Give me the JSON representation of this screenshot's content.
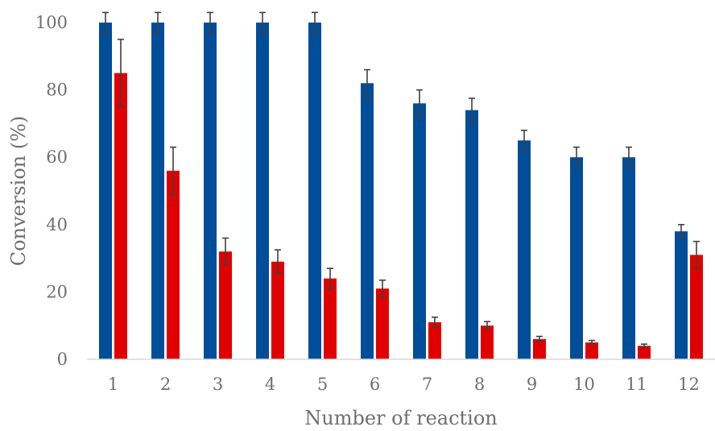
{
  "chart_data": {
    "type": "bar",
    "xlabel": "Number of reaction",
    "ylabel": "Conversion (%)",
    "categories": [
      "1",
      "2",
      "3",
      "4",
      "5",
      "6",
      "7",
      "8",
      "9",
      "10",
      "11",
      "12"
    ],
    "ylim": [
      0,
      100
    ],
    "yticks": [
      0,
      20,
      40,
      60,
      80,
      100
    ],
    "grid": false,
    "legend": "none",
    "series": [
      {
        "color": "#004d9a",
        "values": [
          100,
          100,
          100,
          100,
          100,
          82,
          76,
          74,
          65,
          60,
          60,
          38
        ],
        "errors": [
          3,
          3,
          3,
          3,
          3,
          4,
          4,
          3.5,
          3,
          3,
          3,
          2
        ]
      },
      {
        "color": "#e00000",
        "values": [
          85,
          56,
          32,
          29,
          24,
          21,
          11,
          10,
          6,
          5,
          4,
          31
        ],
        "errors": [
          10,
          7,
          4,
          3.5,
          3,
          2.5,
          1.5,
          1.2,
          0.8,
          0.6,
          0.5,
          4
        ]
      }
    ]
  }
}
